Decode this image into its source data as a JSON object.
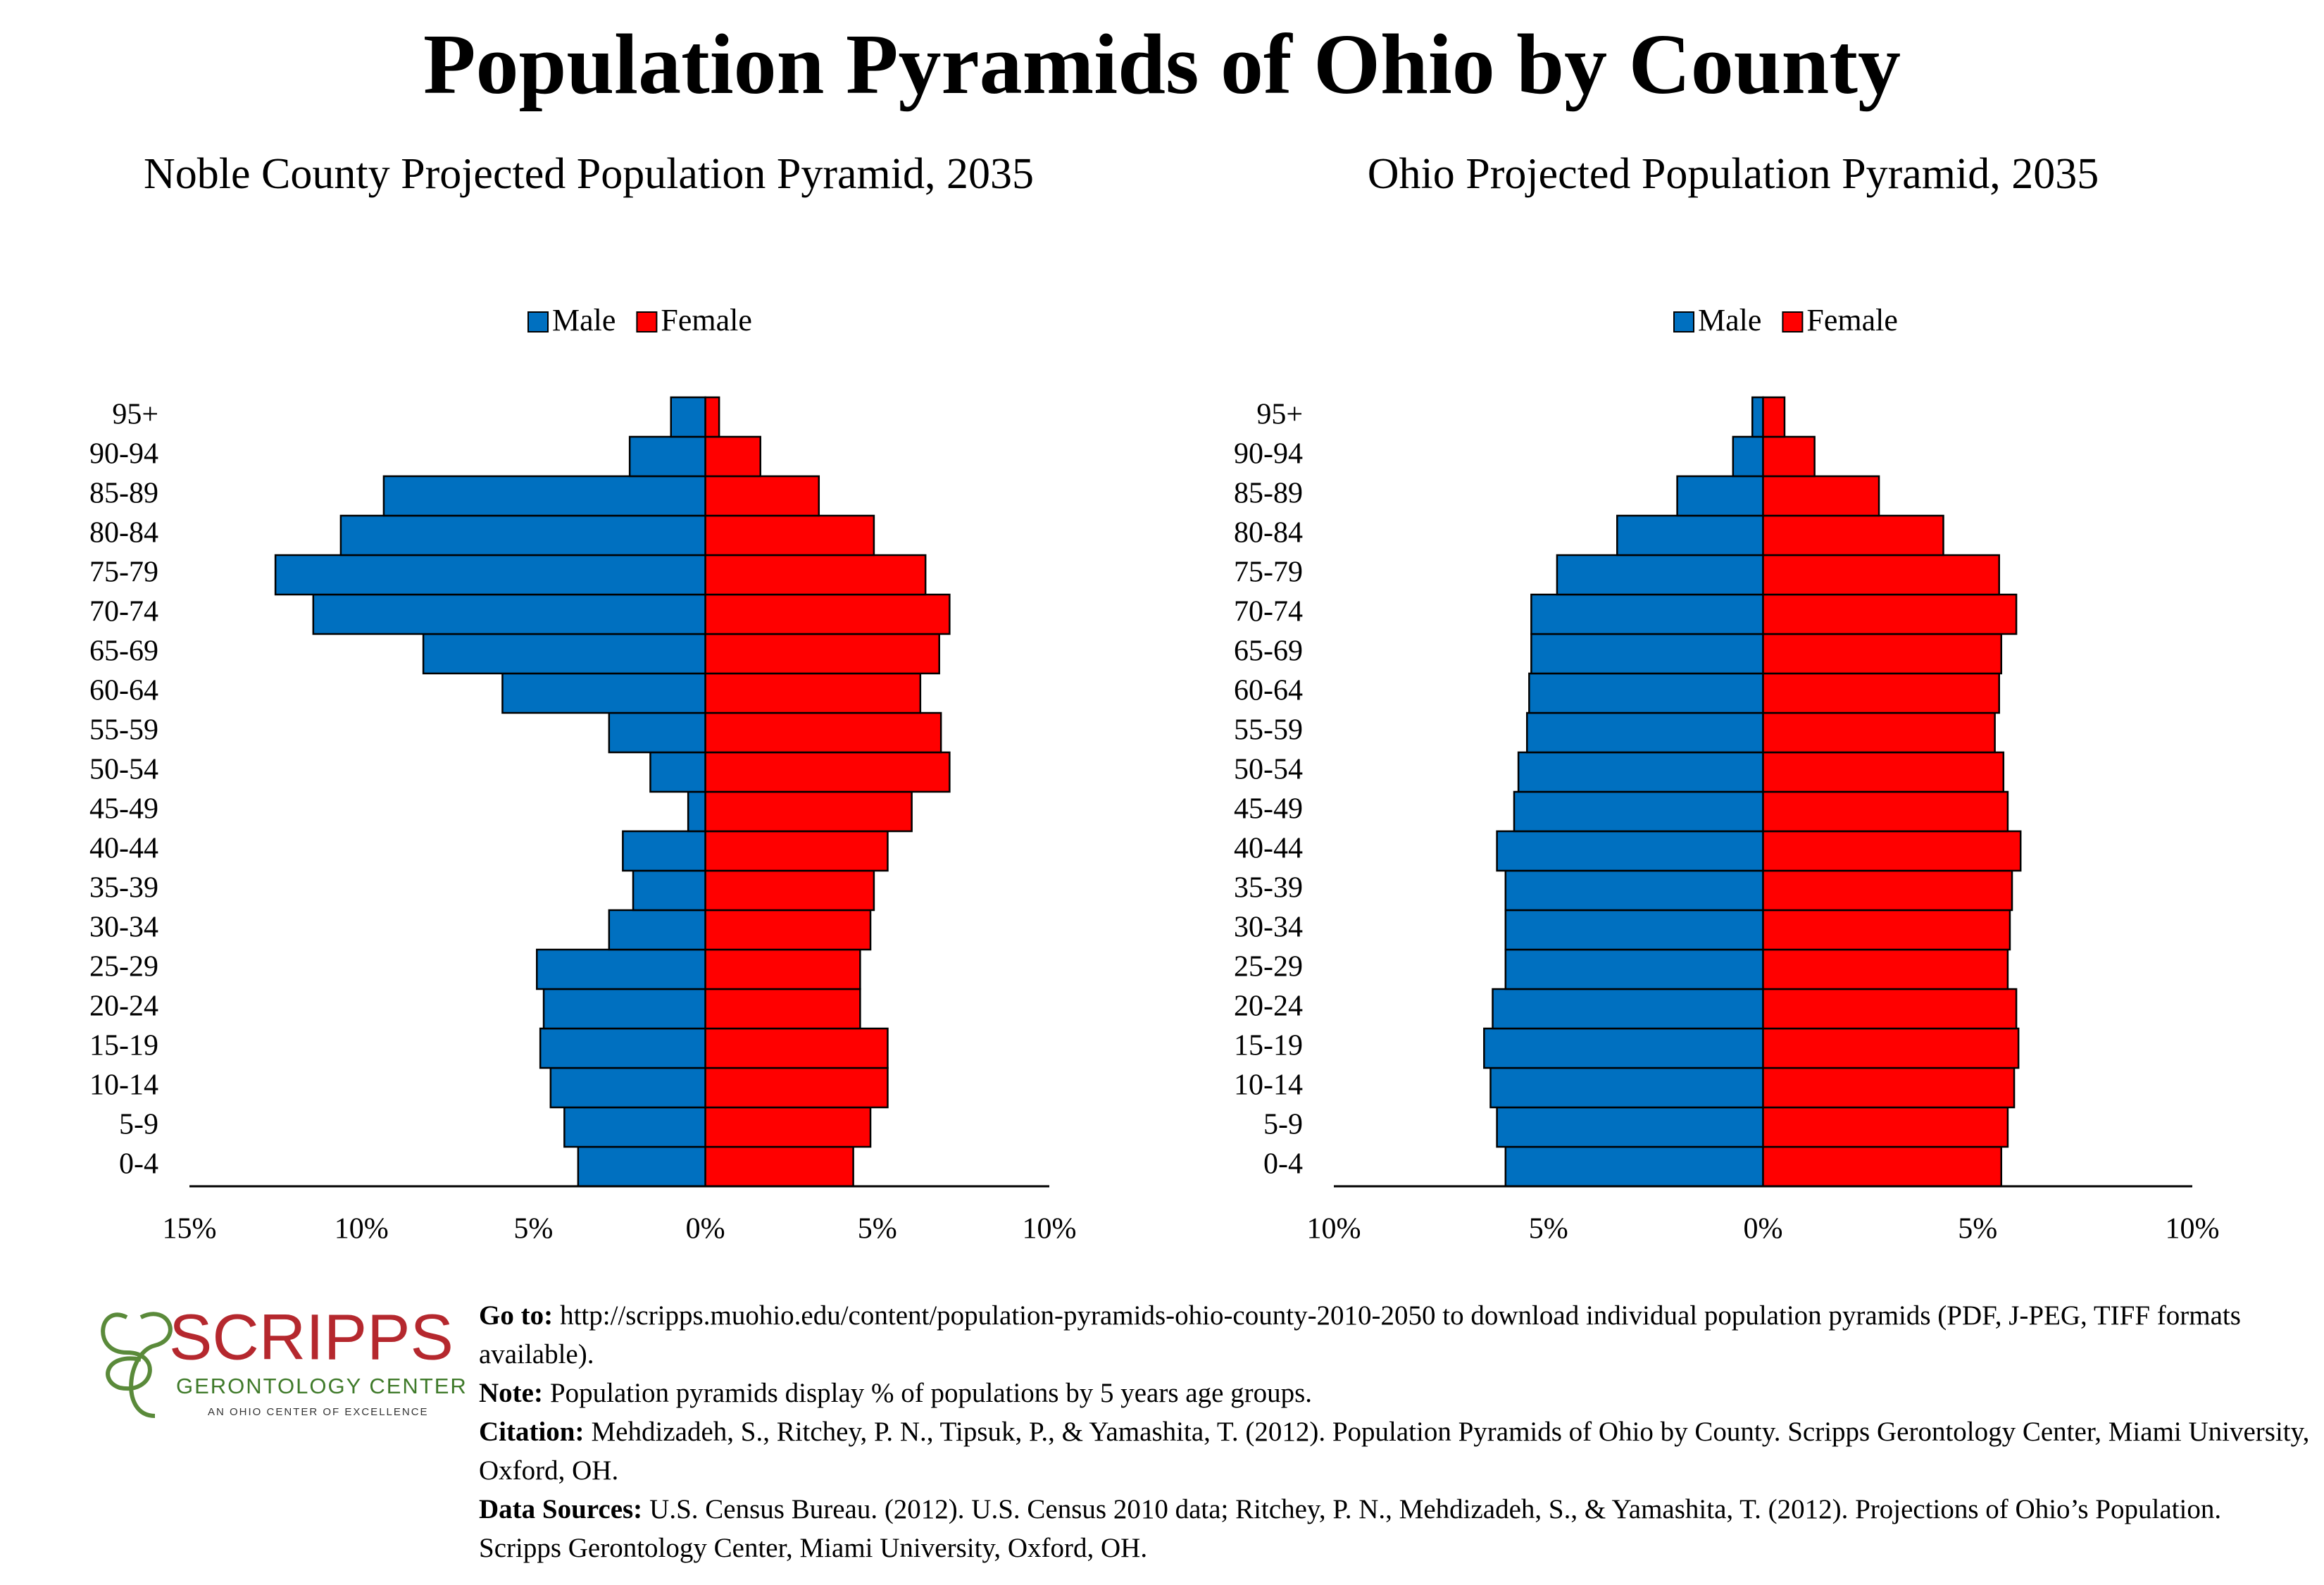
{
  "title": "Population Pyramids of Ohio by County",
  "chart_data": [
    {
      "type": "pyramid",
      "title": "Noble County Projected Population Pyramid, 2035",
      "categories": [
        "0-4",
        "5-9",
        "10-14",
        "15-19",
        "20-24",
        "25-29",
        "30-34",
        "35-39",
        "40-44",
        "45-49",
        "50-54",
        "55-59",
        "60-64",
        "65-69",
        "70-74",
        "75-79",
        "80-84",
        "85-89",
        "90-94",
        "95+"
      ],
      "series": [
        {
          "name": "Male",
          "color": "#0070c0",
          "values": [
            -3.7,
            -4.1,
            -4.5,
            -4.8,
            -4.7,
            -4.9,
            -2.8,
            -2.1,
            -2.4,
            -0.5,
            -1.6,
            -2.8,
            -5.9,
            -8.2,
            -11.4,
            -12.5,
            -10.6,
            -9.35,
            -2.2,
            -1.0
          ]
        },
        {
          "name": "Female",
          "color": "#ff0000",
          "values": [
            4.3,
            4.8,
            5.3,
            5.3,
            4.5,
            4.5,
            4.8,
            4.9,
            5.3,
            6.0,
            7.1,
            6.85,
            6.25,
            6.8,
            7.1,
            6.4,
            4.9,
            3.3,
            1.6,
            0.4
          ]
        }
      ],
      "xlim": [
        -15,
        10
      ],
      "xticks": [
        {
          "value": -15,
          "label": "15%"
        },
        {
          "value": -10,
          "label": "10%"
        },
        {
          "value": -5,
          "label": "5%"
        },
        {
          "value": 0,
          "label": "0%"
        },
        {
          "value": 5,
          "label": "5%"
        },
        {
          "value": 10,
          "label": "10%"
        }
      ],
      "legend": "top"
    },
    {
      "type": "pyramid",
      "title": "Ohio Projected Population Pyramid, 2035",
      "categories": [
        "0-4",
        "5-9",
        "10-14",
        "15-19",
        "20-24",
        "25-29",
        "30-34",
        "35-39",
        "40-44",
        "45-49",
        "50-54",
        "55-59",
        "60-64",
        "65-69",
        "70-74",
        "75-79",
        "80-84",
        "85-89",
        "90-94",
        "95+"
      ],
      "series": [
        {
          "name": "Male",
          "color": "#0070c0",
          "values": [
            -6.0,
            -6.2,
            -6.35,
            -6.5,
            -6.3,
            -6.0,
            -6.0,
            -6.0,
            -6.2,
            -5.8,
            -5.7,
            -5.5,
            -5.45,
            -5.4,
            -5.4,
            -4.8,
            -3.4,
            -2.0,
            -0.7,
            -0.25
          ]
        },
        {
          "name": "Female",
          "color": "#ff0000",
          "values": [
            5.55,
            5.7,
            5.85,
            5.95,
            5.9,
            5.7,
            5.75,
            5.8,
            6.0,
            5.7,
            5.6,
            5.4,
            5.5,
            5.55,
            5.9,
            5.5,
            4.2,
            2.7,
            1.2,
            0.5
          ]
        }
      ],
      "xlim": [
        -10,
        10
      ],
      "xticks": [
        {
          "value": -10,
          "label": "10%"
        },
        {
          "value": -5,
          "label": "5%"
        },
        {
          "value": 0,
          "label": "0%"
        },
        {
          "value": 5,
          "label": "5%"
        },
        {
          "value": 10,
          "label": "10%"
        }
      ],
      "legend": "top"
    }
  ],
  "logo": {
    "name": "SCRIPPS",
    "subtitle": "GERONTOLOGY CENTER",
    "tagline": "AN OHIO CENTER OF EXCELLENCE"
  },
  "footer": [
    {
      "label": "Go to:",
      "text": "http://scripps.muohio.edu/content/population-pyramids-ohio-county-2010-2050 to download individual population pyramids (PDF, J-PEG, TIFF formats available)."
    },
    {
      "label": "Note:",
      "text": "Population pyramids display % of populations by 5 years age groups."
    },
    {
      "label": "Citation:",
      "text": "Mehdizadeh, S., Ritchey, P. N., Tipsuk, P., & Yamashita, T. (2012). Population Pyramids of Ohio by County. Scripps Gerontology Center, Miami University, Oxford, OH."
    },
    {
      "label": "Data Sources:",
      "text": "U.S. Census Bureau. (2012). U.S. Census 2010 data; Ritchey, P. N., Mehdizadeh, S., & Yamashita, T. (2012). Projections of Ohio’s Population. Scripps Gerontology Center, Miami University, Oxford, OH."
    }
  ]
}
